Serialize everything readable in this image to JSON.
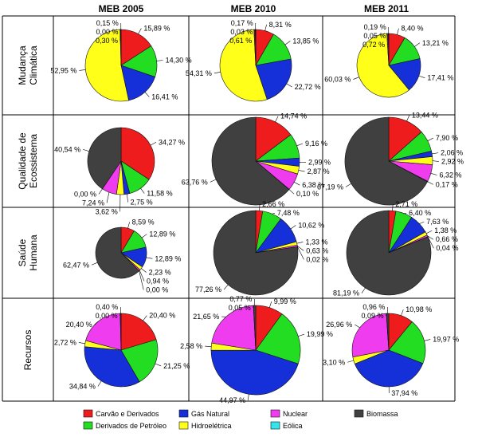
{
  "columns": [
    "MEB 2005",
    "MEB 2010",
    "MEB 2011"
  ],
  "rows": [
    {
      "label": [
        "Mudança",
        "Climática"
      ]
    },
    {
      "label": [
        "Qualidade de",
        "Ecossistema"
      ]
    },
    {
      "label": [
        "Saúde",
        "Humana"
      ]
    },
    {
      "label": [
        "Recursos"
      ]
    }
  ],
  "legend": [
    {
      "key": "carvao",
      "label": "Carvão e Derivados",
      "color": "#ee1c1c"
    },
    {
      "key": "derivados",
      "label": "Derivados de Petróleo",
      "color": "#22dd22"
    },
    {
      "key": "gas",
      "label": "Gás Natural",
      "color": "#1530d8"
    },
    {
      "key": "hidro",
      "label": "Hidroelétrica",
      "color": "#ffff1a"
    },
    {
      "key": "nuclear",
      "label": "Nuclear",
      "color": "#ee3cee"
    },
    {
      "key": "eolica",
      "label": "Eólica",
      "color": "#33e6ee"
    },
    {
      "key": "biomassa",
      "label": "Biomassa",
      "color": "#404040"
    }
  ],
  "chart_data": [
    {
      "type": "pie",
      "row": "Mudança Climática",
      "column": "MEB 2005",
      "slices": [
        {
          "key": "carvao",
          "value": 15.89,
          "label": "15,89 %"
        },
        {
          "key": "derivados",
          "value": 14.3,
          "label": "14,30 %"
        },
        {
          "key": "gas",
          "value": 16.41,
          "label": "16,41 %"
        },
        {
          "key": "hidro",
          "value": 52.95,
          "label": "52,95 %"
        },
        {
          "key": "nuclear",
          "value": 0.3,
          "label": "0,30 %"
        },
        {
          "key": "eolica",
          "value": 0.0,
          "label": "0,00 %"
        },
        {
          "key": "biomassa",
          "value": 0.15,
          "label": "0,15 %"
        }
      ]
    },
    {
      "type": "pie",
      "row": "Mudança Climática",
      "column": "MEB 2010",
      "slices": [
        {
          "key": "carvao",
          "value": 8.31,
          "label": "8,31 %"
        },
        {
          "key": "derivados",
          "value": 13.85,
          "label": "13,85 %"
        },
        {
          "key": "gas",
          "value": 22.72,
          "label": "22,72 %"
        },
        {
          "key": "hidro",
          "value": 54.31,
          "label": "54,31 %"
        },
        {
          "key": "nuclear",
          "value": 0.61,
          "label": "0,61 %"
        },
        {
          "key": "eolica",
          "value": 0.03,
          "label": "0,03 %"
        },
        {
          "key": "biomassa",
          "value": 0.17,
          "label": "0,17 %"
        }
      ]
    },
    {
      "type": "pie",
      "row": "Mudança Climática",
      "column": "MEB 2011",
      "slices": [
        {
          "key": "carvao",
          "value": 8.4,
          "label": "8,40 %"
        },
        {
          "key": "derivados",
          "value": 13.21,
          "label": "13,21 %"
        },
        {
          "key": "gas",
          "value": 17.41,
          "label": "17,41 %"
        },
        {
          "key": "hidro",
          "value": 60.03,
          "label": "60,03 %"
        },
        {
          "key": "nuclear",
          "value": 0.72,
          "label": "0,72 %"
        },
        {
          "key": "eolica",
          "value": 0.05,
          "label": "0,05 %"
        },
        {
          "key": "biomassa",
          "value": 0.19,
          "label": "0,19 %"
        }
      ]
    },
    {
      "type": "pie",
      "row": "Qualidade de Ecossistema",
      "column": "MEB 2005",
      "slices": [
        {
          "key": "carvao",
          "value": 34.27,
          "label": "34,27 %"
        },
        {
          "key": "derivados",
          "value": 11.58,
          "label": "11,58 %"
        },
        {
          "key": "gas",
          "value": 2.75,
          "label": "2,75 %"
        },
        {
          "key": "hidro",
          "value": 3.62,
          "label": "3,62 %"
        },
        {
          "key": "nuclear",
          "value": 7.24,
          "label": "7,24 %"
        },
        {
          "key": "eolica",
          "value": 0.0,
          "label": "0,00 %"
        },
        {
          "key": "biomassa",
          "value": 40.54,
          "label": "40,54 %"
        }
      ]
    },
    {
      "type": "pie",
      "row": "Qualidade de Ecossistema",
      "column": "MEB 2010",
      "slices": [
        {
          "key": "carvao",
          "value": 14.74,
          "label": "14,74 %"
        },
        {
          "key": "derivados",
          "value": 9.16,
          "label": "9,16 %"
        },
        {
          "key": "gas",
          "value": 2.99,
          "label": "2,99 %"
        },
        {
          "key": "hidro",
          "value": 2.87,
          "label": "2,87 %"
        },
        {
          "key": "nuclear",
          "value": 6.38,
          "label": "6,38 %"
        },
        {
          "key": "eolica",
          "value": 0.1,
          "label": "0,10 %"
        },
        {
          "key": "biomassa",
          "value": 63.76,
          "label": "63,76 %"
        }
      ]
    },
    {
      "type": "pie",
      "row": "Qualidade de Ecossistema",
      "column": "MEB 2011",
      "slices": [
        {
          "key": "carvao",
          "value": 13.44,
          "label": "13,44 %"
        },
        {
          "key": "derivados",
          "value": 7.9,
          "label": "7,90 %"
        },
        {
          "key": "gas",
          "value": 2.06,
          "label": "2,06 %"
        },
        {
          "key": "hidro",
          "value": 2.92,
          "label": "2,92 %"
        },
        {
          "key": "nuclear",
          "value": 6.32,
          "label": "6,32 %"
        },
        {
          "key": "eolica",
          "value": 0.17,
          "label": "0,17 %"
        },
        {
          "key": "biomassa",
          "value": 67.19,
          "label": "67,19 %"
        }
      ]
    },
    {
      "type": "pie",
      "row": "Saúde Humana",
      "column": "MEB 2005",
      "slices": [
        {
          "key": "carvao",
          "value": 8.59,
          "label": "8,59 %"
        },
        {
          "key": "derivados",
          "value": 12.89,
          "label": "12,89 %"
        },
        {
          "key": "gas",
          "value": 12.89,
          "label": "12,89 %"
        },
        {
          "key": "hidro",
          "value": 2.23,
          "label": "2,23 %"
        },
        {
          "key": "nuclear",
          "value": 0.94,
          "label": "0,94 %"
        },
        {
          "key": "eolica",
          "value": 0.0,
          "label": "0,00 %"
        },
        {
          "key": "biomassa",
          "value": 62.47,
          "label": "62,47 %"
        }
      ]
    },
    {
      "type": "pie",
      "row": "Saúde Humana",
      "column": "MEB 2010",
      "slices": [
        {
          "key": "carvao",
          "value": 2.66,
          "label": "2,66 %"
        },
        {
          "key": "derivados",
          "value": 7.48,
          "label": "7,48 %"
        },
        {
          "key": "gas",
          "value": 10.62,
          "label": "10,62 %"
        },
        {
          "key": "hidro",
          "value": 1.33,
          "label": "1,33 %"
        },
        {
          "key": "nuclear",
          "value": 0.63,
          "label": "0,63 %"
        },
        {
          "key": "eolica",
          "value": 0.02,
          "label": "0,02 %"
        },
        {
          "key": "biomassa",
          "value": 77.26,
          "label": "77,26 %"
        }
      ]
    },
    {
      "type": "pie",
      "row": "Saúde Humana",
      "column": "MEB 2011",
      "slices": [
        {
          "key": "carvao",
          "value": 2.71,
          "label": "2,71 %"
        },
        {
          "key": "derivados",
          "value": 6.4,
          "label": "6,40 %"
        },
        {
          "key": "gas",
          "value": 7.63,
          "label": "7,63 %"
        },
        {
          "key": "hidro",
          "value": 1.38,
          "label": "1,38 %"
        },
        {
          "key": "nuclear",
          "value": 0.66,
          "label": "0,66 %"
        },
        {
          "key": "eolica",
          "value": 0.04,
          "label": "0,04 %"
        },
        {
          "key": "biomassa",
          "value": 81.19,
          "label": "81,19 %"
        }
      ]
    },
    {
      "type": "pie",
      "row": "Recursos",
      "column": "MEB 2005",
      "slices": [
        {
          "key": "carvao",
          "value": 20.4,
          "label": "20,40 %"
        },
        {
          "key": "derivados",
          "value": 21.25,
          "label": "21,25 %"
        },
        {
          "key": "gas",
          "value": 34.84,
          "label": "34,84 %"
        },
        {
          "key": "hidro",
          "value": 2.72,
          "label": "2,72 %"
        },
        {
          "key": "nuclear",
          "value": 20.4,
          "label": "20,40 %"
        },
        {
          "key": "eolica",
          "value": 0.0,
          "label": "0,00 %"
        },
        {
          "key": "biomassa",
          "value": 0.4,
          "label": "0,40 %"
        }
      ]
    },
    {
      "type": "pie",
      "row": "Recursos",
      "column": "MEB 2010",
      "slices": [
        {
          "key": "carvao",
          "value": 9.99,
          "label": "9,99 %"
        },
        {
          "key": "derivados",
          "value": 19.99,
          "label": "19,99 %"
        },
        {
          "key": "gas",
          "value": 44.97,
          "label": "44,97 %"
        },
        {
          "key": "hidro",
          "value": 2.58,
          "label": "2,58 %"
        },
        {
          "key": "nuclear",
          "value": 21.65,
          "label": "21,65 %"
        },
        {
          "key": "eolica",
          "value": 0.05,
          "label": "0,05 %"
        },
        {
          "key": "biomassa",
          "value": 0.77,
          "label": "0,77 %"
        }
      ]
    },
    {
      "type": "pie",
      "row": "Recursos",
      "column": "MEB 2011",
      "slices": [
        {
          "key": "carvao",
          "value": 10.98,
          "label": "10,98 %"
        },
        {
          "key": "derivados",
          "value": 19.97,
          "label": "19,97 %"
        },
        {
          "key": "gas",
          "value": 37.94,
          "label": "37,94 %"
        },
        {
          "key": "hidro",
          "value": 3.1,
          "label": "3,10 %"
        },
        {
          "key": "nuclear",
          "value": 26.96,
          "label": "26,96 %"
        },
        {
          "key": "eolica",
          "value": 0.09,
          "label": "0,09 %"
        },
        {
          "key": "biomassa",
          "value": 0.96,
          "label": "0,96 %"
        }
      ]
    }
  ]
}
